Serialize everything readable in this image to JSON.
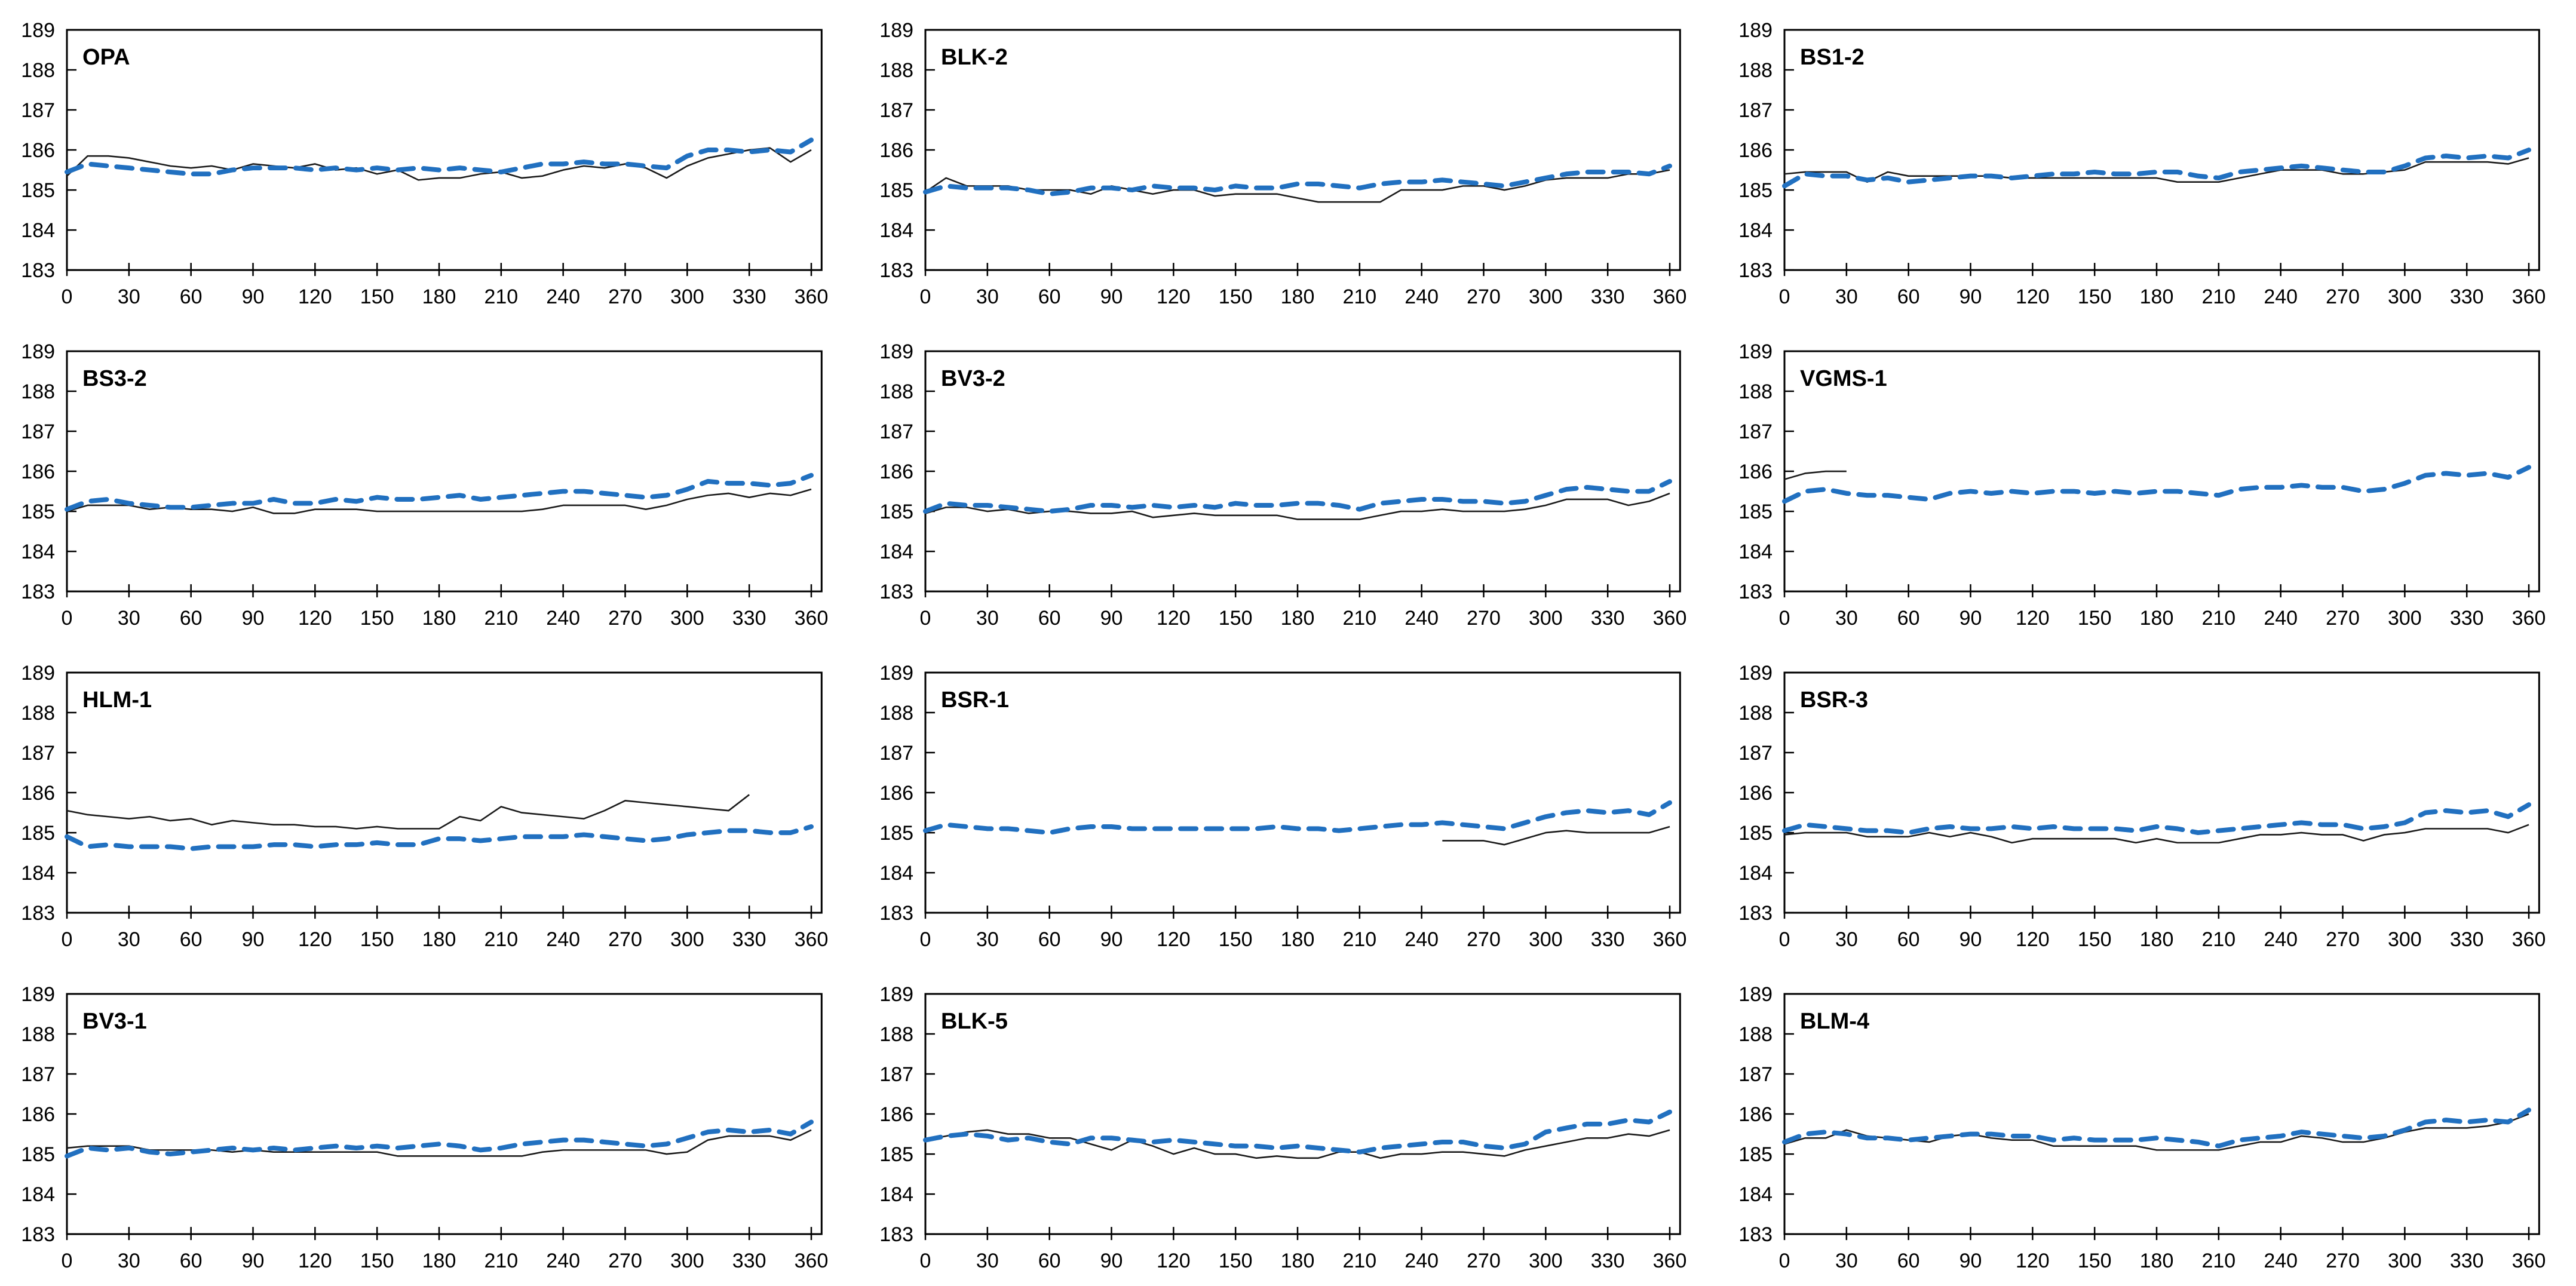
{
  "figure": {
    "background": "#ffffff",
    "grid_rows": 4,
    "grid_cols": 3,
    "axis": {
      "xlim": [
        0,
        365
      ],
      "ylim": [
        183,
        189
      ],
      "x_ticks": [
        0,
        30,
        60,
        90,
        120,
        150,
        180,
        210,
        240,
        270,
        300,
        330,
        360
      ],
      "y_ticks": [
        183,
        184,
        185,
        186,
        187,
        188,
        189
      ],
      "x_step": 10,
      "grid_lines": "off",
      "legend": "none"
    },
    "styles": {
      "solid_color": "#1a1a1a",
      "dashed_color": "#2170C0",
      "axis_color": "#000000"
    }
  },
  "chart_data": [
    {
      "type": "line",
      "title": "OPA",
      "series": {
        "solid": [
          185.35,
          185.85,
          185.85,
          185.8,
          185.7,
          185.6,
          185.55,
          185.6,
          185.5,
          185.65,
          185.6,
          185.55,
          185.65,
          185.5,
          185.55,
          185.4,
          185.5,
          185.25,
          185.3,
          185.3,
          185.4,
          185.45,
          185.3,
          185.35,
          185.5,
          185.6,
          185.55,
          185.65,
          185.55,
          185.3,
          185.6,
          185.8,
          185.9,
          186.0,
          186.05,
          185.7,
          186.0
        ],
        "dashed": [
          185.45,
          185.65,
          185.6,
          185.55,
          185.5,
          185.45,
          185.4,
          185.4,
          185.5,
          185.55,
          185.55,
          185.55,
          185.5,
          185.55,
          185.5,
          185.55,
          185.5,
          185.55,
          185.5,
          185.55,
          185.5,
          185.45,
          185.55,
          185.65,
          185.65,
          185.7,
          185.65,
          185.65,
          185.6,
          185.55,
          185.85,
          186.0,
          186.0,
          185.95,
          186.0,
          185.95,
          186.25
        ]
      }
    },
    {
      "type": "line",
      "title": "BLK-2",
      "series": {
        "solid": [
          184.95,
          185.3,
          185.1,
          185.1,
          185.1,
          185.0,
          185.0,
          185.0,
          184.9,
          185.1,
          185.0,
          184.9,
          185.0,
          185.0,
          184.85,
          184.9,
          184.9,
          184.9,
          184.8,
          184.7,
          184.7,
          184.7,
          184.7,
          185.0,
          185.0,
          185.0,
          185.1,
          185.1,
          185.0,
          185.1,
          185.25,
          185.3,
          185.3,
          185.3,
          185.4,
          185.4,
          185.5
        ],
        "dashed": [
          184.95,
          185.1,
          185.05,
          185.05,
          185.05,
          185.0,
          184.9,
          184.95,
          185.05,
          185.05,
          185.0,
          185.1,
          185.05,
          185.05,
          185.0,
          185.1,
          185.05,
          185.05,
          185.15,
          185.15,
          185.1,
          185.05,
          185.15,
          185.2,
          185.2,
          185.25,
          185.2,
          185.15,
          185.1,
          185.2,
          185.3,
          185.4,
          185.45,
          185.45,
          185.45,
          185.4,
          185.6
        ]
      }
    },
    {
      "type": "line",
      "title": "BS1-2",
      "series": {
        "solid": [
          185.4,
          185.45,
          185.45,
          185.45,
          185.2,
          185.45,
          185.35,
          185.35,
          185.35,
          185.35,
          185.35,
          185.3,
          185.3,
          185.3,
          185.3,
          185.3,
          185.3,
          185.3,
          185.3,
          185.2,
          185.2,
          185.2,
          185.3,
          185.4,
          185.5,
          185.5,
          185.5,
          185.4,
          185.4,
          185.45,
          185.5,
          185.7,
          185.7,
          185.7,
          185.7,
          185.65,
          185.8
        ],
        "dashed": [
          185.1,
          185.4,
          185.35,
          185.35,
          185.25,
          185.3,
          185.2,
          185.25,
          185.3,
          185.35,
          185.35,
          185.3,
          185.35,
          185.4,
          185.4,
          185.45,
          185.4,
          185.4,
          185.45,
          185.45,
          185.35,
          185.3,
          185.45,
          185.5,
          185.55,
          185.6,
          185.55,
          185.5,
          185.45,
          185.45,
          185.6,
          185.8,
          185.85,
          185.8,
          185.85,
          185.8,
          186.0
        ]
      }
    },
    {
      "type": "line",
      "title": "BS3-2",
      "series": {
        "solid": [
          185.0,
          185.15,
          185.15,
          185.15,
          185.05,
          185.1,
          185.05,
          185.05,
          185.0,
          185.1,
          184.95,
          184.95,
          185.05,
          185.05,
          185.05,
          185.0,
          185.0,
          185.0,
          185.0,
          185.0,
          185.0,
          185.0,
          185.0,
          185.05,
          185.15,
          185.15,
          185.15,
          185.15,
          185.05,
          185.15,
          185.3,
          185.4,
          185.45,
          185.35,
          185.45,
          185.4,
          185.55
        ],
        "dashed": [
          185.05,
          185.25,
          185.3,
          185.2,
          185.15,
          185.1,
          185.1,
          185.15,
          185.2,
          185.2,
          185.3,
          185.2,
          185.2,
          185.3,
          185.25,
          185.35,
          185.3,
          185.3,
          185.35,
          185.4,
          185.3,
          185.35,
          185.4,
          185.45,
          185.5,
          185.5,
          185.45,
          185.4,
          185.35,
          185.4,
          185.55,
          185.75,
          185.7,
          185.7,
          185.65,
          185.7,
          185.9
        ]
      }
    },
    {
      "type": "line",
      "title": "BV3-2",
      "series": {
        "solid": [
          184.95,
          185.1,
          185.1,
          185.0,
          185.05,
          184.95,
          185.0,
          185.0,
          184.95,
          184.95,
          185.0,
          184.85,
          184.9,
          184.95,
          184.9,
          184.9,
          184.9,
          184.9,
          184.8,
          184.8,
          184.8,
          184.8,
          184.9,
          185.0,
          185.0,
          185.05,
          185.0,
          185.0,
          185.0,
          185.05,
          185.15,
          185.3,
          185.3,
          185.3,
          185.15,
          185.25,
          185.45
        ],
        "dashed": [
          185.0,
          185.2,
          185.15,
          185.15,
          185.1,
          185.05,
          185.0,
          185.05,
          185.15,
          185.15,
          185.1,
          185.15,
          185.1,
          185.15,
          185.1,
          185.2,
          185.15,
          185.15,
          185.2,
          185.2,
          185.15,
          185.05,
          185.2,
          185.25,
          185.3,
          185.3,
          185.25,
          185.25,
          185.2,
          185.25,
          185.4,
          185.55,
          185.6,
          185.55,
          185.5,
          185.5,
          185.75
        ]
      }
    },
    {
      "type": "line",
      "title": "VGMS-1",
      "series": {
        "solid": [
          185.8,
          185.95,
          186.0,
          186.0,
          null,
          null,
          null,
          null,
          null,
          null,
          null,
          null,
          null,
          null,
          null,
          null,
          null,
          null,
          null,
          null,
          null,
          null,
          null,
          null,
          null,
          null,
          null,
          null,
          null,
          null,
          null,
          null,
          null,
          null,
          null,
          null,
          null
        ],
        "dashed": [
          185.25,
          185.5,
          185.55,
          185.45,
          185.4,
          185.4,
          185.35,
          185.3,
          185.45,
          185.5,
          185.45,
          185.5,
          185.45,
          185.5,
          185.5,
          185.45,
          185.5,
          185.45,
          185.5,
          185.5,
          185.45,
          185.4,
          185.55,
          185.6,
          185.6,
          185.65,
          185.6,
          185.6,
          185.5,
          185.55,
          185.7,
          185.9,
          185.95,
          185.9,
          185.95,
          185.85,
          186.1
        ]
      }
    },
    {
      "type": "line",
      "title": "HLM-1",
      "series": {
        "solid": [
          185.55,
          185.45,
          185.4,
          185.35,
          185.4,
          185.3,
          185.35,
          185.2,
          185.3,
          185.25,
          185.2,
          185.2,
          185.15,
          185.15,
          185.1,
          185.15,
          185.1,
          185.1,
          185.1,
          185.4,
          185.3,
          185.65,
          185.5,
          185.45,
          185.4,
          185.35,
          185.55,
          185.8,
          185.75,
          185.7,
          185.65,
          185.6,
          185.55,
          185.95,
          null,
          null,
          null
        ],
        "dashed": [
          184.9,
          184.65,
          184.7,
          184.65,
          184.65,
          184.65,
          184.6,
          184.65,
          184.65,
          184.65,
          184.7,
          184.7,
          184.65,
          184.7,
          184.7,
          184.75,
          184.7,
          184.7,
          184.85,
          184.85,
          184.8,
          184.85,
          184.9,
          184.9,
          184.9,
          184.95,
          184.9,
          184.85,
          184.8,
          184.85,
          184.95,
          185.0,
          185.05,
          185.05,
          185.0,
          185.0,
          185.15
        ]
      }
    },
    {
      "type": "line",
      "title": "BSR-1",
      "series": {
        "solid": [
          null,
          null,
          null,
          null,
          null,
          null,
          null,
          null,
          null,
          null,
          null,
          null,
          null,
          null,
          null,
          null,
          null,
          null,
          null,
          null,
          null,
          null,
          null,
          null,
          null,
          184.8,
          184.8,
          184.8,
          184.7,
          184.85,
          185.0,
          185.05,
          185.0,
          185.0,
          185.0,
          185.0,
          185.15
        ],
        "dashed": [
          185.05,
          185.2,
          185.15,
          185.1,
          185.1,
          185.05,
          185.0,
          185.1,
          185.15,
          185.15,
          185.1,
          185.1,
          185.1,
          185.1,
          185.1,
          185.1,
          185.1,
          185.15,
          185.1,
          185.1,
          185.05,
          185.1,
          185.15,
          185.2,
          185.2,
          185.25,
          185.2,
          185.15,
          185.1,
          185.25,
          185.4,
          185.5,
          185.55,
          185.5,
          185.55,
          185.45,
          185.75
        ]
      }
    },
    {
      "type": "line",
      "title": "BSR-3",
      "series": {
        "solid": [
          184.95,
          185.0,
          185.0,
          185.0,
          184.9,
          184.9,
          184.9,
          185.0,
          184.9,
          185.0,
          184.9,
          184.75,
          184.85,
          184.85,
          184.85,
          184.85,
          184.85,
          184.75,
          184.85,
          184.75,
          184.75,
          184.75,
          184.85,
          184.95,
          184.95,
          185.0,
          184.95,
          184.95,
          184.8,
          184.95,
          185.0,
          185.1,
          185.1,
          185.1,
          185.1,
          185.0,
          185.2
        ],
        "dashed": [
          185.05,
          185.2,
          185.15,
          185.1,
          185.05,
          185.05,
          185.0,
          185.1,
          185.15,
          185.1,
          185.1,
          185.15,
          185.1,
          185.15,
          185.1,
          185.1,
          185.1,
          185.05,
          185.15,
          185.1,
          185.0,
          185.05,
          185.1,
          185.15,
          185.2,
          185.25,
          185.2,
          185.2,
          185.1,
          185.15,
          185.25,
          185.5,
          185.55,
          185.5,
          185.55,
          185.4,
          185.7
        ]
      }
    },
    {
      "type": "line",
      "title": "BV3-1",
      "series": {
        "solid": [
          185.15,
          185.2,
          185.2,
          185.2,
          185.1,
          185.1,
          185.1,
          185.1,
          185.05,
          185.1,
          185.05,
          185.05,
          185.05,
          185.05,
          185.05,
          185.05,
          184.95,
          184.95,
          184.95,
          184.95,
          184.95,
          184.95,
          184.95,
          185.05,
          185.1,
          185.1,
          185.1,
          185.1,
          185.1,
          185.0,
          185.05,
          185.35,
          185.45,
          185.45,
          185.45,
          185.35,
          185.6
        ],
        "dashed": [
          184.95,
          185.15,
          185.1,
          185.15,
          185.05,
          185.0,
          185.05,
          185.1,
          185.15,
          185.1,
          185.15,
          185.1,
          185.15,
          185.2,
          185.15,
          185.2,
          185.15,
          185.2,
          185.25,
          185.2,
          185.1,
          185.15,
          185.25,
          185.3,
          185.35,
          185.35,
          185.3,
          185.25,
          185.2,
          185.25,
          185.4,
          185.55,
          185.6,
          185.55,
          185.6,
          185.5,
          185.8
        ]
      }
    },
    {
      "type": "line",
      "title": "BLK-5",
      "series": {
        "solid": [
          185.35,
          185.45,
          185.55,
          185.6,
          185.5,
          185.5,
          185.4,
          185.4,
          185.25,
          185.1,
          185.35,
          185.2,
          185.0,
          185.15,
          185.0,
          185.0,
          184.9,
          184.95,
          184.9,
          184.9,
          185.05,
          185.05,
          184.9,
          185.0,
          185.0,
          185.05,
          185.05,
          185.0,
          184.95,
          185.1,
          185.2,
          185.3,
          185.4,
          185.4,
          185.5,
          185.45,
          185.6
        ],
        "dashed": [
          185.35,
          185.45,
          185.5,
          185.45,
          185.35,
          185.4,
          185.3,
          185.25,
          185.4,
          185.4,
          185.35,
          185.3,
          185.35,
          185.3,
          185.25,
          185.2,
          185.2,
          185.15,
          185.2,
          185.15,
          185.1,
          185.05,
          185.15,
          185.2,
          185.25,
          185.3,
          185.3,
          185.2,
          185.15,
          185.25,
          185.55,
          185.65,
          185.75,
          185.75,
          185.85,
          185.8,
          186.05
        ]
      }
    },
    {
      "type": "line",
      "title": "BLM-4",
      "series": {
        "solid": [
          185.25,
          185.4,
          185.4,
          185.6,
          185.45,
          185.4,
          185.35,
          185.3,
          185.45,
          185.5,
          185.4,
          185.35,
          185.35,
          185.2,
          185.2,
          185.2,
          185.2,
          185.2,
          185.1,
          185.1,
          185.1,
          185.1,
          185.2,
          185.3,
          185.3,
          185.45,
          185.4,
          185.3,
          185.3,
          185.4,
          185.55,
          185.65,
          185.65,
          185.65,
          185.7,
          185.8,
          186.0
        ],
        "dashed": [
          185.3,
          185.5,
          185.55,
          185.5,
          185.4,
          185.4,
          185.35,
          185.4,
          185.45,
          185.5,
          185.5,
          185.45,
          185.45,
          185.35,
          185.4,
          185.35,
          185.35,
          185.35,
          185.4,
          185.35,
          185.3,
          185.2,
          185.35,
          185.4,
          185.45,
          185.55,
          185.5,
          185.45,
          185.4,
          185.45,
          185.6,
          185.8,
          185.85,
          185.8,
          185.85,
          185.8,
          186.1
        ]
      }
    }
  ]
}
